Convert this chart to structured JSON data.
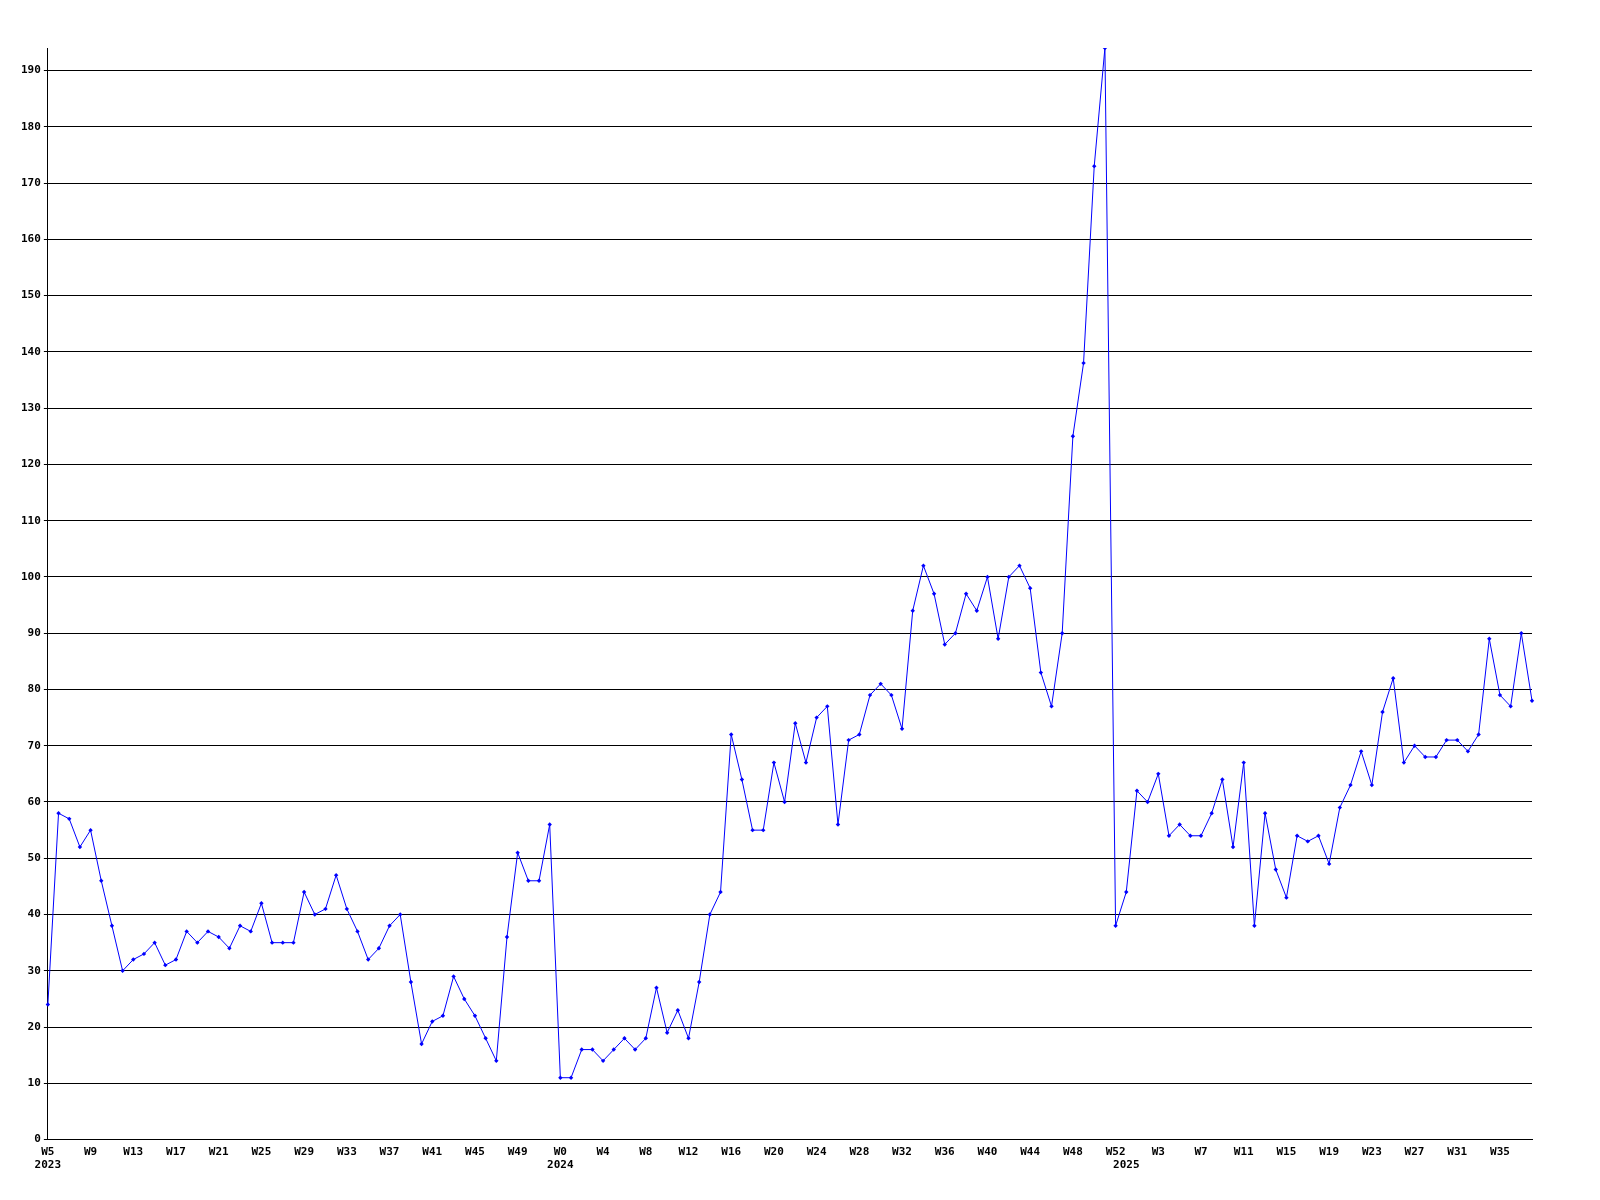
{
  "chart_data": {
    "type": "line",
    "categories": [
      "W5\n2023",
      null,
      null,
      null,
      "W9",
      null,
      null,
      null,
      "W13",
      null,
      null,
      null,
      "W17",
      null,
      null,
      null,
      "W21",
      null,
      null,
      null,
      "W25",
      null,
      null,
      null,
      "W29",
      null,
      null,
      null,
      "W33",
      null,
      null,
      null,
      "W37",
      null,
      null,
      null,
      "W41",
      null,
      null,
      null,
      "W45",
      null,
      null,
      null,
      "W49",
      null,
      null,
      null,
      "W0\n2024",
      null,
      null,
      null,
      "W4",
      null,
      null,
      null,
      "W8",
      null,
      null,
      null,
      "W12",
      null,
      null,
      null,
      "W16",
      null,
      null,
      null,
      "W20",
      null,
      null,
      null,
      "W24",
      null,
      null,
      null,
      "W28",
      null,
      null,
      null,
      "W32",
      null,
      null,
      null,
      "W36",
      null,
      null,
      null,
      "W40",
      null,
      null,
      null,
      "W44",
      null,
      null,
      null,
      "W48",
      null,
      null,
      null,
      "W52",
      "\n2025",
      null,
      null,
      "W3",
      null,
      null,
      null,
      "W7",
      null,
      null,
      null,
      "W11",
      null,
      null,
      null,
      "W15",
      null,
      null,
      null,
      "W19",
      null,
      null,
      null,
      "W23",
      null,
      null,
      null,
      "W27",
      null,
      null,
      null,
      "W31",
      null,
      null,
      null,
      "W35",
      null,
      null,
      null
    ],
    "series": [
      {
        "color": "#0000ff",
        "values": [
          24,
          58,
          57,
          52,
          55,
          46,
          38,
          30,
          32,
          33,
          35,
          31,
          32,
          37,
          35,
          37,
          36,
          34,
          38,
          37,
          42,
          35,
          35,
          35,
          44,
          40,
          41,
          47,
          41,
          37,
          32,
          34,
          38,
          40,
          28,
          17,
          21,
          22,
          29,
          25,
          22,
          18,
          14,
          36,
          51,
          46,
          46,
          56,
          11,
          11,
          16,
          16,
          14,
          16,
          18,
          16,
          18,
          27,
          19,
          23,
          18,
          28,
          40,
          44,
          72,
          64,
          55,
          55,
          67,
          60,
          74,
          67,
          75,
          77,
          56,
          71,
          72,
          79,
          81,
          79,
          73,
          94,
          102,
          97,
          88,
          90,
          97,
          94,
          100,
          89,
          100,
          102,
          98,
          83,
          77,
          90,
          125,
          138,
          173,
          194,
          38,
          44,
          62,
          60,
          65,
          54,
          56,
          54,
          54,
          58,
          64,
          52,
          67,
          38,
          58,
          48,
          43,
          54,
          53,
          54,
          49,
          59,
          63,
          69,
          63,
          76,
          82,
          67,
          70,
          68,
          68,
          71,
          71,
          69,
          72,
          89,
          79,
          77,
          90,
          78
        ]
      }
    ],
    "ylim": [
      0,
      194
    ],
    "yticks": [
      0,
      10,
      20,
      30,
      40,
      50,
      60,
      70,
      80,
      90,
      100,
      110,
      120,
      130,
      140,
      150,
      160,
      170,
      180,
      190
    ],
    "grid": "y",
    "marker": "diamond",
    "line_style": "solid"
  }
}
